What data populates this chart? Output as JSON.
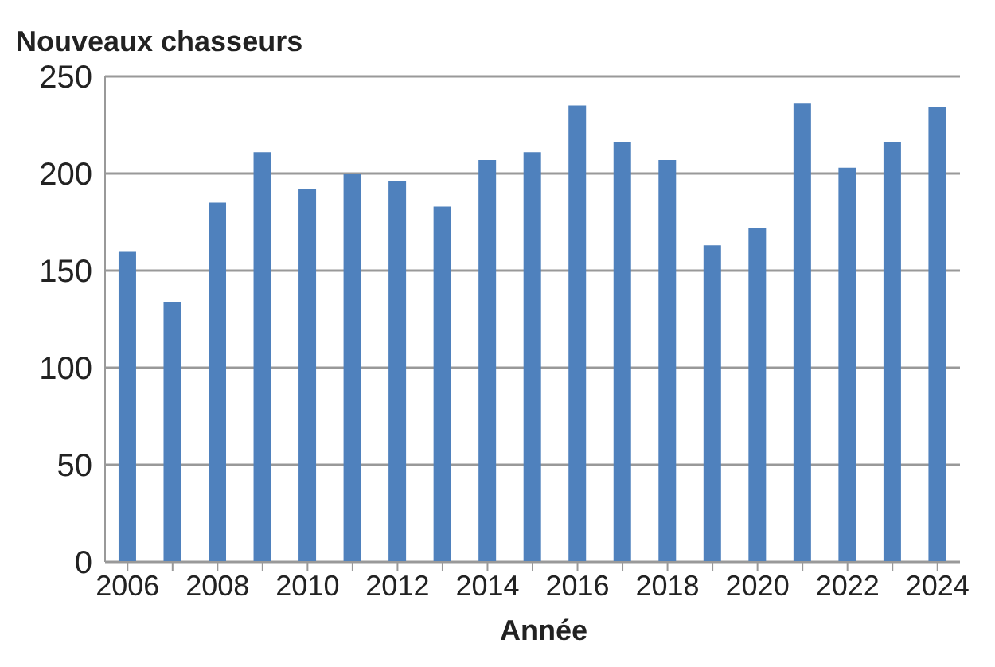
{
  "chart_data": {
    "type": "bar",
    "title": "Nouveaux chasseurs",
    "xlabel": "Année",
    "categories": [
      "2006",
      null,
      "2008",
      null,
      "2010",
      null,
      "2012",
      null,
      "2014",
      null,
      "2016",
      null,
      "2018",
      null,
      "2020",
      null,
      "2022",
      null,
      "2024"
    ],
    "values": [
      160,
      134,
      185,
      211,
      192,
      200,
      196,
      183,
      207,
      211,
      235,
      216,
      207,
      163,
      172,
      236,
      203,
      216,
      234
    ],
    "color": "#4f81bd",
    "ylim": [
      0,
      250
    ],
    "yticks": [
      0,
      50,
      100,
      150,
      200,
      250
    ],
    "grid": "y"
  }
}
